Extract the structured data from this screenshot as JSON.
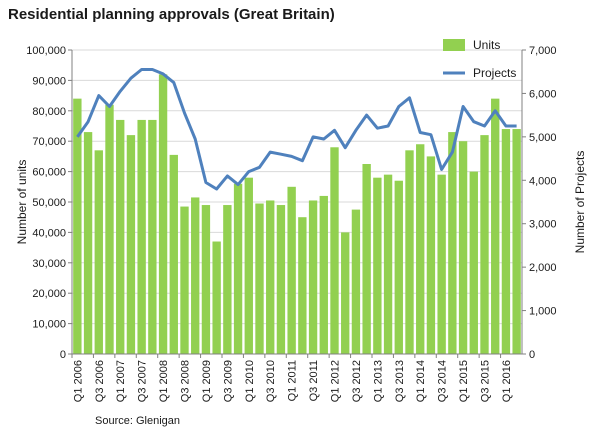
{
  "chart_data": {
    "type": "bar",
    "title": "Residential planning approvals (Great Britain)",
    "source": "Source: Glenigan",
    "ylabel": "Number of units",
    "y2label": "Number of Projects",
    "ylim": [
      0,
      100000
    ],
    "y2lim": [
      0,
      7000
    ],
    "yticks": [
      "0",
      "10,000",
      "20,000",
      "30,000",
      "40,000",
      "50,000",
      "60,000",
      "70,000",
      "80,000",
      "90,000",
      "100,000"
    ],
    "y2ticks": [
      "0",
      "1,000",
      "2,000",
      "3,000",
      "4,000",
      "5,000",
      "6,000",
      "7,000"
    ],
    "xtick_labels": [
      "Q1 2006",
      "Q3 2006",
      "Q1 2007",
      "Q3 2007",
      "Q1 2008",
      "Q3 2008",
      "Q1 2009",
      "Q3 2009",
      "Q1 2010",
      "Q3 2010",
      "Q1 2011",
      "Q3 2011",
      "Q1 2012",
      "Q3 2012",
      "Q1 2013",
      "Q3 2013",
      "Q1 2014",
      "Q3 2014",
      "Q1 2015",
      "Q3 2015",
      "Q1 2016"
    ],
    "grid": true,
    "legend_position": "top-right",
    "series": [
      {
        "name": "Units",
        "type": "bar",
        "axis": "left",
        "color": "#92d050",
        "values": [
          84000,
          73000,
          67000,
          82000,
          77000,
          72000,
          77000,
          77000,
          92000,
          65500,
          48500,
          51500,
          49000,
          37000,
          49000,
          56000,
          58000,
          49500,
          50500,
          49000,
          55000,
          45000,
          50500,
          52000,
          68000,
          40000,
          47500,
          62500,
          58000,
          59000,
          57000,
          67000,
          69000,
          65000,
          59000,
          73000,
          70000,
          60000,
          72000,
          84000,
          74000,
          74000
        ]
      },
      {
        "name": "Projects",
        "type": "line",
        "axis": "right",
        "color": "#4f81bd",
        "values": [
          5000,
          5350,
          5950,
          5700,
          6050,
          6350,
          6550,
          6550,
          6450,
          6250,
          5550,
          4950,
          3950,
          3800,
          4100,
          3900,
          4200,
          4300,
          4650,
          4600,
          4550,
          4450,
          5000,
          4950,
          5150,
          4750,
          5150,
          5500,
          5200,
          5250,
          5700,
          5900,
          5100,
          5050,
          4250,
          4650,
          5700,
          5350,
          5250,
          5600,
          5250,
          5250
        ]
      }
    ]
  }
}
